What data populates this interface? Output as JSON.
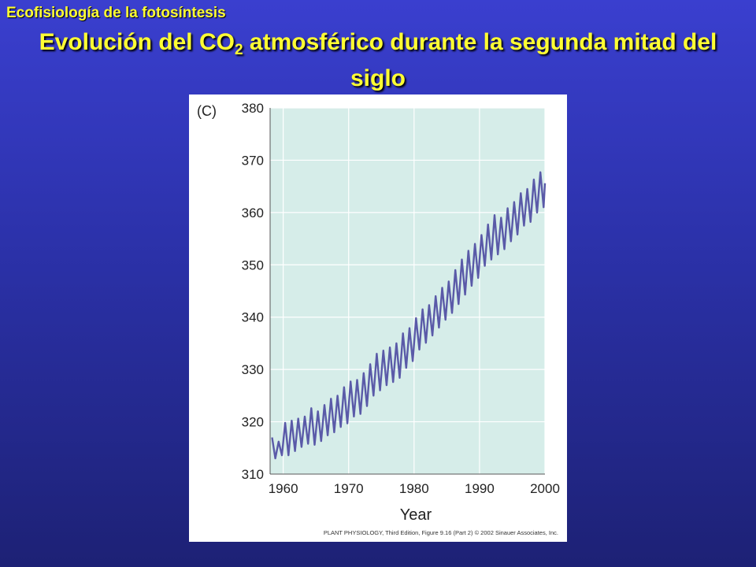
{
  "slide": {
    "section_label": "Ecofisiología de la fotosíntesis",
    "title_part1": "Evolución del CO",
    "title_sub": "2",
    "title_part2": " atmosférico durante la segunda mitad del siglo"
  },
  "figure": {
    "panel_label": "(C)",
    "credit": "PLANT PHYSIOLOGY, Third Edition, Figure 9.16 (Part 2)  © 2002 Sinauer Associates, Inc."
  },
  "colors": {
    "background_top": "#3a3fcf",
    "background_bottom": "#1d2175",
    "title": "#ffff33",
    "plot_area": "#d6ede9",
    "series_line": "#5a5aa8",
    "grid": "#ffffff"
  },
  "chart_data": {
    "type": "line",
    "title": "",
    "xlabel": "Year",
    "ylabel": "",
    "xlim": [
      1958,
      2000
    ],
    "ylim": [
      310,
      380
    ],
    "xticks": [
      1960,
      1970,
      1980,
      1990,
      2000
    ],
    "yticks": [
      310,
      320,
      330,
      340,
      350,
      360,
      370,
      380
    ],
    "grid": true,
    "series": [
      {
        "values_description_free": true,
        "peaks": [
          [
            1958.3,
            317.0
          ],
          [
            1959.3,
            316.2
          ],
          [
            1960.3,
            319.8
          ],
          [
            1961.3,
            320.2
          ],
          [
            1962.3,
            320.6
          ],
          [
            1963.3,
            321.0
          ],
          [
            1964.3,
            322.6
          ],
          [
            1965.3,
            322.0
          ],
          [
            1966.3,
            323.2
          ],
          [
            1967.3,
            324.4
          ],
          [
            1968.3,
            325.0
          ],
          [
            1969.3,
            326.6
          ],
          [
            1970.3,
            327.7
          ],
          [
            1971.3,
            328.0
          ],
          [
            1972.3,
            329.3
          ],
          [
            1973.3,
            331.0
          ],
          [
            1974.3,
            333.0
          ],
          [
            1975.3,
            333.6
          ],
          [
            1976.3,
            334.2
          ],
          [
            1977.3,
            335.0
          ],
          [
            1978.3,
            336.9
          ],
          [
            1979.3,
            337.9
          ],
          [
            1980.3,
            339.8
          ],
          [
            1981.3,
            341.5
          ],
          [
            1982.3,
            342.3
          ],
          [
            1983.3,
            344.0
          ],
          [
            1984.3,
            345.6
          ],
          [
            1985.3,
            346.8
          ],
          [
            1986.3,
            349.0
          ],
          [
            1987.3,
            351.0
          ],
          [
            1988.3,
            352.7
          ],
          [
            1989.3,
            354.0
          ],
          [
            1990.3,
            355.7
          ],
          [
            1991.3,
            357.7
          ],
          [
            1992.3,
            359.5
          ],
          [
            1993.3,
            359.0
          ],
          [
            1994.3,
            360.8
          ],
          [
            1995.3,
            362.0
          ],
          [
            1996.3,
            363.7
          ],
          [
            1997.3,
            364.5
          ],
          [
            1998.3,
            366.3
          ],
          [
            1999.3,
            367.7
          ],
          [
            2000.0,
            365.6
          ]
        ],
        "troughs": [
          [
            1958.8,
            313.0
          ],
          [
            1959.8,
            313.6
          ],
          [
            1960.8,
            313.6
          ],
          [
            1961.8,
            314.4
          ],
          [
            1962.8,
            315.2
          ],
          [
            1963.8,
            315.8
          ],
          [
            1964.8,
            315.6
          ],
          [
            1965.8,
            316.3
          ],
          [
            1966.8,
            317.4
          ],
          [
            1967.8,
            318.0
          ],
          [
            1968.8,
            319.0
          ],
          [
            1969.8,
            319.7
          ],
          [
            1970.8,
            321.0
          ],
          [
            1971.8,
            321.5
          ],
          [
            1972.8,
            323.0
          ],
          [
            1973.8,
            325.0
          ],
          [
            1974.8,
            326.0
          ],
          [
            1975.8,
            327.0
          ],
          [
            1976.8,
            327.6
          ],
          [
            1977.8,
            328.4
          ],
          [
            1978.8,
            330.3
          ],
          [
            1979.8,
            331.6
          ],
          [
            1980.8,
            333.8
          ],
          [
            1981.8,
            335.1
          ],
          [
            1982.8,
            336.5
          ],
          [
            1983.8,
            338.0
          ],
          [
            1984.8,
            339.5
          ],
          [
            1985.8,
            340.8
          ],
          [
            1986.8,
            342.5
          ],
          [
            1987.8,
            344.3
          ],
          [
            1988.8,
            346.0
          ],
          [
            1989.8,
            347.5
          ],
          [
            1990.8,
            349.8
          ],
          [
            1991.8,
            351.0
          ],
          [
            1992.8,
            352.0
          ],
          [
            1993.8,
            353.0
          ],
          [
            1994.8,
            354.5
          ],
          [
            1995.8,
            355.8
          ],
          [
            1996.8,
            357.5
          ],
          [
            1997.8,
            358.2
          ],
          [
            1998.8,
            360.0
          ],
          [
            1999.8,
            361.0
          ]
        ]
      }
    ]
  }
}
